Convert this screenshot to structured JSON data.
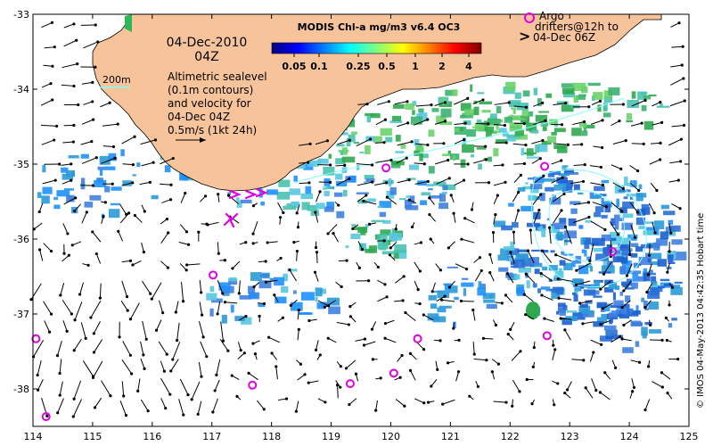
{
  "map": {
    "date": "04-Dec-2010",
    "time": "04Z",
    "depth_contour_label": "200m",
    "sealevel_note": [
      "Altimetric sealevel",
      "(0.1m contours)",
      "and velocity for",
      "04-Dec 04Z"
    ],
    "velocity_scale_label": "0.5m/s (1kt 24h)",
    "argo_legend": [
      "Argo",
      "drifters@12h to",
      "04-Dec 06Z"
    ],
    "argo_symbol": ">",
    "credit": "© IMOS 04-May-2013 04:42:35 Hobart time",
    "lon_ticks": [
      "114",
      "115",
      "116",
      "117",
      "118",
      "119",
      "120",
      "121",
      "122",
      "123",
      "124",
      "125"
    ],
    "lat_ticks": [
      "-33",
      "-34",
      "-35",
      "-36",
      "-37",
      "-38"
    ],
    "lon_range": [
      114,
      125
    ],
    "lat_range": [
      -38.5,
      -33
    ]
  },
  "colorbar": {
    "title": "MODIS Chl-a mg/m3 v6.4 OC3",
    "tick_labels": [
      "0.05",
      "0.1",
      "0.25",
      "0.5",
      "1",
      "2",
      "4"
    ],
    "colors": [
      "#00007f",
      "#0000ff",
      "#007fff",
      "#00ffff",
      "#7fff7f",
      "#ffff00",
      "#ff7f00",
      "#ff0000",
      "#7f0000"
    ]
  },
  "colors": {
    "land": "#f7c39a",
    "ocean": "#ffffff",
    "argo_marker": "#e000e0",
    "contour": "#7fffff",
    "arrow": "#000000"
  },
  "argo_floats": [
    {
      "lon": 119.92,
      "lat": -35.05
    },
    {
      "lon": 122.58,
      "lat": -35.03
    },
    {
      "lon": 123.72,
      "lat": -36.17
    },
    {
      "lon": 117.02,
      "lat": -36.48
    },
    {
      "lon": 114.05,
      "lat": -37.33
    },
    {
      "lon": 120.45,
      "lat": -37.33
    },
    {
      "lon": 122.62,
      "lat": -37.29
    },
    {
      "lon": 120.05,
      "lat": -37.79
    },
    {
      "lon": 117.68,
      "lat": -37.95
    },
    {
      "lon": 119.32,
      "lat": -37.93
    },
    {
      "lon": 114.22,
      "lat": -38.37
    }
  ]
}
